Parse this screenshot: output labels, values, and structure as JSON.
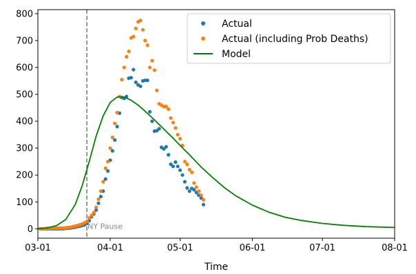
{
  "chart_data": {
    "type": "scatter",
    "xlabel": "Time",
    "x_ticks": [
      "03-01",
      "04-01",
      "05-01",
      "06-01",
      "07-01",
      "08-01"
    ],
    "y_ticks": [
      0,
      100,
      200,
      300,
      400,
      500,
      600,
      700,
      800
    ],
    "xlim": [
      "2020-03-01",
      "2020-08-01"
    ],
    "ylim": [
      -35,
      815
    ],
    "grid": false,
    "legend_position": "top-right",
    "vline": {
      "x": "2020-03-22",
      "label": "NY Pause",
      "color": "#808080"
    },
    "series": [
      {
        "name": "Actual",
        "kind": "points",
        "color": "#1f77b4",
        "x": [
          "2020-03-02",
          "2020-03-03",
          "2020-03-04",
          "2020-03-05",
          "2020-03-06",
          "2020-03-07",
          "2020-03-08",
          "2020-03-09",
          "2020-03-10",
          "2020-03-11",
          "2020-03-12",
          "2020-03-13",
          "2020-03-14",
          "2020-03-15",
          "2020-03-16",
          "2020-03-17",
          "2020-03-18",
          "2020-03-19",
          "2020-03-20",
          "2020-03-21",
          "2020-03-22",
          "2020-03-23",
          "2020-03-24",
          "2020-03-25",
          "2020-03-26",
          "2020-03-27",
          "2020-03-28",
          "2020-03-29",
          "2020-03-30",
          "2020-03-31",
          "2020-04-01",
          "2020-04-02",
          "2020-04-03",
          "2020-04-04",
          "2020-04-05",
          "2020-04-06",
          "2020-04-07",
          "2020-04-08",
          "2020-04-09",
          "2020-04-10",
          "2020-04-11",
          "2020-04-12",
          "2020-04-13",
          "2020-04-14",
          "2020-04-15",
          "2020-04-16",
          "2020-04-17",
          "2020-04-18",
          "2020-04-19",
          "2020-04-20",
          "2020-04-21",
          "2020-04-22",
          "2020-04-23",
          "2020-04-24",
          "2020-04-25",
          "2020-04-26",
          "2020-04-27",
          "2020-04-28",
          "2020-04-29",
          "2020-04-30",
          "2020-05-01",
          "2020-05-02",
          "2020-05-03",
          "2020-05-04",
          "2020-05-05",
          "2020-05-06",
          "2020-05-07",
          "2020-05-08",
          "2020-05-09",
          "2020-05-10",
          "2020-05-11"
        ],
        "y": [
          0,
          0,
          0,
          0,
          0,
          0,
          0,
          0,
          0,
          0,
          0,
          2,
          2,
          3,
          5,
          6,
          8,
          10,
          12,
          15,
          20,
          30,
          45,
          55,
          70,
          95,
          120,
          140,
          185,
          215,
          255,
          290,
          330,
          380,
          430,
          488,
          485,
          492,
          560,
          562,
          592,
          545,
          535,
          530,
          550,
          552,
          552,
          435,
          400,
          363,
          365,
          372,
          303,
          297,
          305,
          275,
          240,
          232,
          248,
          232,
          218,
          200,
          175,
          152,
          140,
          150,
          145,
          135,
          125,
          115,
          90
        ]
      },
      {
        "name": "Actual (including Prob Deaths)",
        "kind": "points",
        "color": "#ff7f0e",
        "x": [
          "2020-03-02",
          "2020-03-03",
          "2020-03-04",
          "2020-03-05",
          "2020-03-06",
          "2020-03-07",
          "2020-03-08",
          "2020-03-09",
          "2020-03-10",
          "2020-03-11",
          "2020-03-12",
          "2020-03-13",
          "2020-03-14",
          "2020-03-15",
          "2020-03-16",
          "2020-03-17",
          "2020-03-18",
          "2020-03-19",
          "2020-03-20",
          "2020-03-21",
          "2020-03-22",
          "2020-03-23",
          "2020-03-24",
          "2020-03-25",
          "2020-03-26",
          "2020-03-27",
          "2020-03-28",
          "2020-03-29",
          "2020-03-30",
          "2020-03-31",
          "2020-04-01",
          "2020-04-02",
          "2020-04-03",
          "2020-04-04",
          "2020-04-05",
          "2020-04-06",
          "2020-04-07",
          "2020-04-08",
          "2020-04-09",
          "2020-04-10",
          "2020-04-11",
          "2020-04-12",
          "2020-04-13",
          "2020-04-14",
          "2020-04-15",
          "2020-04-16",
          "2020-04-17",
          "2020-04-18",
          "2020-04-19",
          "2020-04-20",
          "2020-04-21",
          "2020-04-22",
          "2020-04-23",
          "2020-04-24",
          "2020-04-25",
          "2020-04-26",
          "2020-04-27",
          "2020-04-28",
          "2020-04-29",
          "2020-04-30",
          "2020-05-01",
          "2020-05-02",
          "2020-05-03",
          "2020-05-04",
          "2020-05-05",
          "2020-05-06",
          "2020-05-07",
          "2020-05-08",
          "2020-05-09",
          "2020-05-10",
          "2020-05-11"
        ],
        "y": [
          0,
          0,
          0,
          2,
          2,
          3,
          3,
          3,
          3,
          3,
          3,
          4,
          5,
          6,
          8,
          10,
          12,
          15,
          18,
          22,
          28,
          40,
          50,
          60,
          80,
          110,
          140,
          175,
          225,
          250,
          300,
          340,
          392,
          432,
          492,
          555,
          600,
          640,
          660,
          710,
          715,
          745,
          770,
          775,
          740,
          700,
          683,
          600,
          625,
          590,
          515,
          465,
          460,
          455,
          455,
          445,
          412,
          395,
          375,
          350,
          335,
          310,
          250,
          240,
          220,
          210,
          170,
          155,
          140,
          125,
          108
        ]
      },
      {
        "name": "Model",
        "kind": "line",
        "color": "#008000",
        "x": [
          "2020-03-01",
          "2020-03-05",
          "2020-03-09",
          "2020-03-13",
          "2020-03-17",
          "2020-03-20",
          "2020-03-23",
          "2020-03-26",
          "2020-03-29",
          "2020-04-01",
          "2020-04-04",
          "2020-04-07",
          "2020-04-10",
          "2020-04-13",
          "2020-04-16",
          "2020-04-19",
          "2020-04-22",
          "2020-04-25",
          "2020-04-28",
          "2020-05-01",
          "2020-05-05",
          "2020-05-10",
          "2020-05-15",
          "2020-05-20",
          "2020-05-25",
          "2020-06-01",
          "2020-06-08",
          "2020-06-15",
          "2020-06-22",
          "2020-07-01",
          "2020-07-10",
          "2020-07-20",
          "2020-08-01"
        ],
        "y": [
          0,
          3,
          12,
          35,
          90,
          160,
          250,
          345,
          420,
          470,
          490,
          490,
          478,
          460,
          437,
          413,
          388,
          362,
          337,
          310,
          275,
          230,
          190,
          153,
          122,
          88,
          62,
          43,
          31,
          20,
          13,
          8,
          5
        ]
      }
    ]
  }
}
